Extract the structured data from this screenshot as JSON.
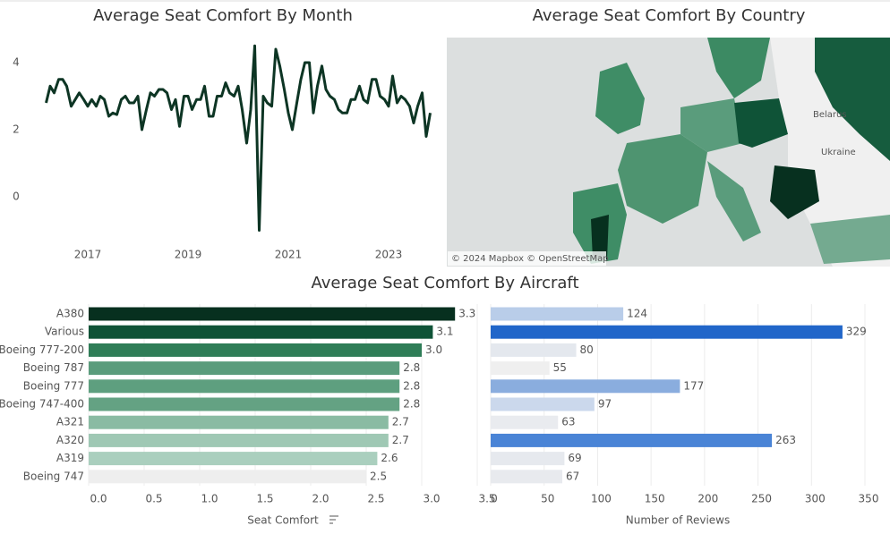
{
  "chart_data": [
    {
      "type": "line",
      "title": "Average Seat Comfort By Month",
      "color": "#0d3524",
      "x": [
        2016.17,
        2016.25,
        2016.33,
        2016.42,
        2016.5,
        2016.58,
        2016.67,
        2016.75,
        2016.83,
        2016.92,
        2017,
        2017.08,
        2017.17,
        2017.25,
        2017.33,
        2017.42,
        2017.5,
        2017.58,
        2017.67,
        2017.75,
        2017.83,
        2017.92,
        2018,
        2018.08,
        2018.17,
        2018.25,
        2018.33,
        2018.42,
        2018.5,
        2018.58,
        2018.67,
        2018.75,
        2018.83,
        2018.92,
        2019,
        2019.08,
        2019.17,
        2019.25,
        2019.33,
        2019.42,
        2019.5,
        2019.58,
        2019.67,
        2019.75,
        2019.83,
        2019.92,
        2020,
        2020.08,
        2020.17,
        2020.25,
        2020.33,
        2020.42,
        2020.5,
        2020.58,
        2020.67,
        2020.75,
        2020.83,
        2020.92,
        2021,
        2021.08,
        2021.17,
        2021.25,
        2021.33,
        2021.42,
        2021.5,
        2021.58,
        2021.67,
        2021.75,
        2021.83,
        2021.92,
        2022,
        2022.08,
        2022.17,
        2022.25,
        2022.33,
        2022.42,
        2022.5,
        2022.58,
        2022.67,
        2022.75,
        2022.83,
        2022.92,
        2023,
        2023.08,
        2023.17,
        2023.25,
        2023.33,
        2023.42,
        2023.5,
        2023.58,
        2023.67,
        2023.75,
        2023.83
      ],
      "values": [
        2.8,
        3.3,
        3.1,
        3.5,
        3.5,
        3.3,
        2.7,
        2.9,
        3.1,
        2.9,
        2.7,
        2.9,
        2.7,
        3.0,
        2.9,
        2.4,
        2.5,
        2.45,
        2.9,
        3.0,
        2.8,
        2.8,
        3.0,
        2.0,
        2.6,
        3.1,
        3.0,
        3.2,
        3.2,
        3.1,
        2.6,
        2.9,
        2.1,
        3.0,
        3.0,
        2.6,
        2.9,
        2.9,
        3.3,
        2.4,
        2.4,
        3.0,
        3.0,
        3.4,
        3.1,
        3.0,
        3.3,
        2.6,
        1.6,
        2.6,
        4.5,
        -1.0,
        3.0,
        2.8,
        2.7,
        4.4,
        3.9,
        3.2,
        2.5,
        2.0,
        2.8,
        3.5,
        4.0,
        4.0,
        2.5,
        3.3,
        3.9,
        3.2,
        3.0,
        2.9,
        2.6,
        2.5,
        2.5,
        2.9,
        2.9,
        3.3,
        2.9,
        2.8,
        3.5,
        3.5,
        3.0,
        2.9,
        2.7,
        3.6,
        2.8,
        3.0,
        2.9,
        2.7,
        2.2,
        2.7,
        3.1,
        1.8,
        2.5
      ],
      "xlim": [
        2016,
        2024
      ],
      "xticks": [
        2017,
        2019,
        2021,
        2023
      ],
      "ylim": [
        -1.2,
        4.8
      ],
      "yticks": [
        0,
        2,
        4
      ]
    },
    {
      "type": "map",
      "title": "Average Seat Comfort By Country",
      "labels": [
        "Belarus",
        "Ukraine"
      ],
      "attribution": "© 2024 Mapbox © OpenStreetMap"
    },
    {
      "type": "hbar",
      "title": "Average Seat Comfort By Aircraft",
      "xlabel": "Seat Comfort",
      "categories": [
        "A380",
        "Various",
        "Boeing 777-200",
        "Boeing 787",
        "Boeing 777",
        "Boeing 747-400",
        "A321",
        "A320",
        "A319",
        "Boeing 747"
      ],
      "values": [
        3.3,
        3.1,
        3.0,
        2.8,
        2.8,
        2.8,
        2.7,
        2.7,
        2.6,
        2.5
      ],
      "value_labels": [
        "3.3",
        "3.1",
        "3.0",
        "2.8",
        "2.8",
        "2.8",
        "2.7",
        "2.7",
        "2.6",
        "2.5"
      ],
      "colors": [
        "#07301f",
        "#0f5337",
        "#2f7d57",
        "#5a9c7c",
        "#5e9f7f",
        "#64a283",
        "#8abba3",
        "#9fc8b4",
        "#aacfbe",
        "#eeeeee"
      ],
      "xlim": [
        0,
        3.5
      ],
      "xticks": [
        {
          "value": 0,
          "label": "0.0"
        },
        0.5,
        {
          "value": 1,
          "label": "1.0"
        },
        1.5,
        {
          "value": 2,
          "label": "2.0"
        },
        2.5,
        {
          "value": 3,
          "label": "3.0"
        },
        3.5
      ]
    },
    {
      "type": "hbar",
      "xlabel": "Number of Reviews",
      "values": [
        124,
        329,
        80,
        55,
        177,
        97,
        63,
        263,
        69,
        67
      ],
      "colors": [
        "#b9cde9",
        "#2166c9",
        "#e4e8ee",
        "#efefef",
        "#8aadde",
        "#cbd8ec",
        "#e9ebef",
        "#4a84d6",
        "#e6e9ee",
        "#e8eaee"
      ],
      "xlim": [
        0,
        350
      ],
      "xticks": [
        0,
        50,
        100,
        150,
        200,
        250,
        300,
        350
      ]
    }
  ]
}
